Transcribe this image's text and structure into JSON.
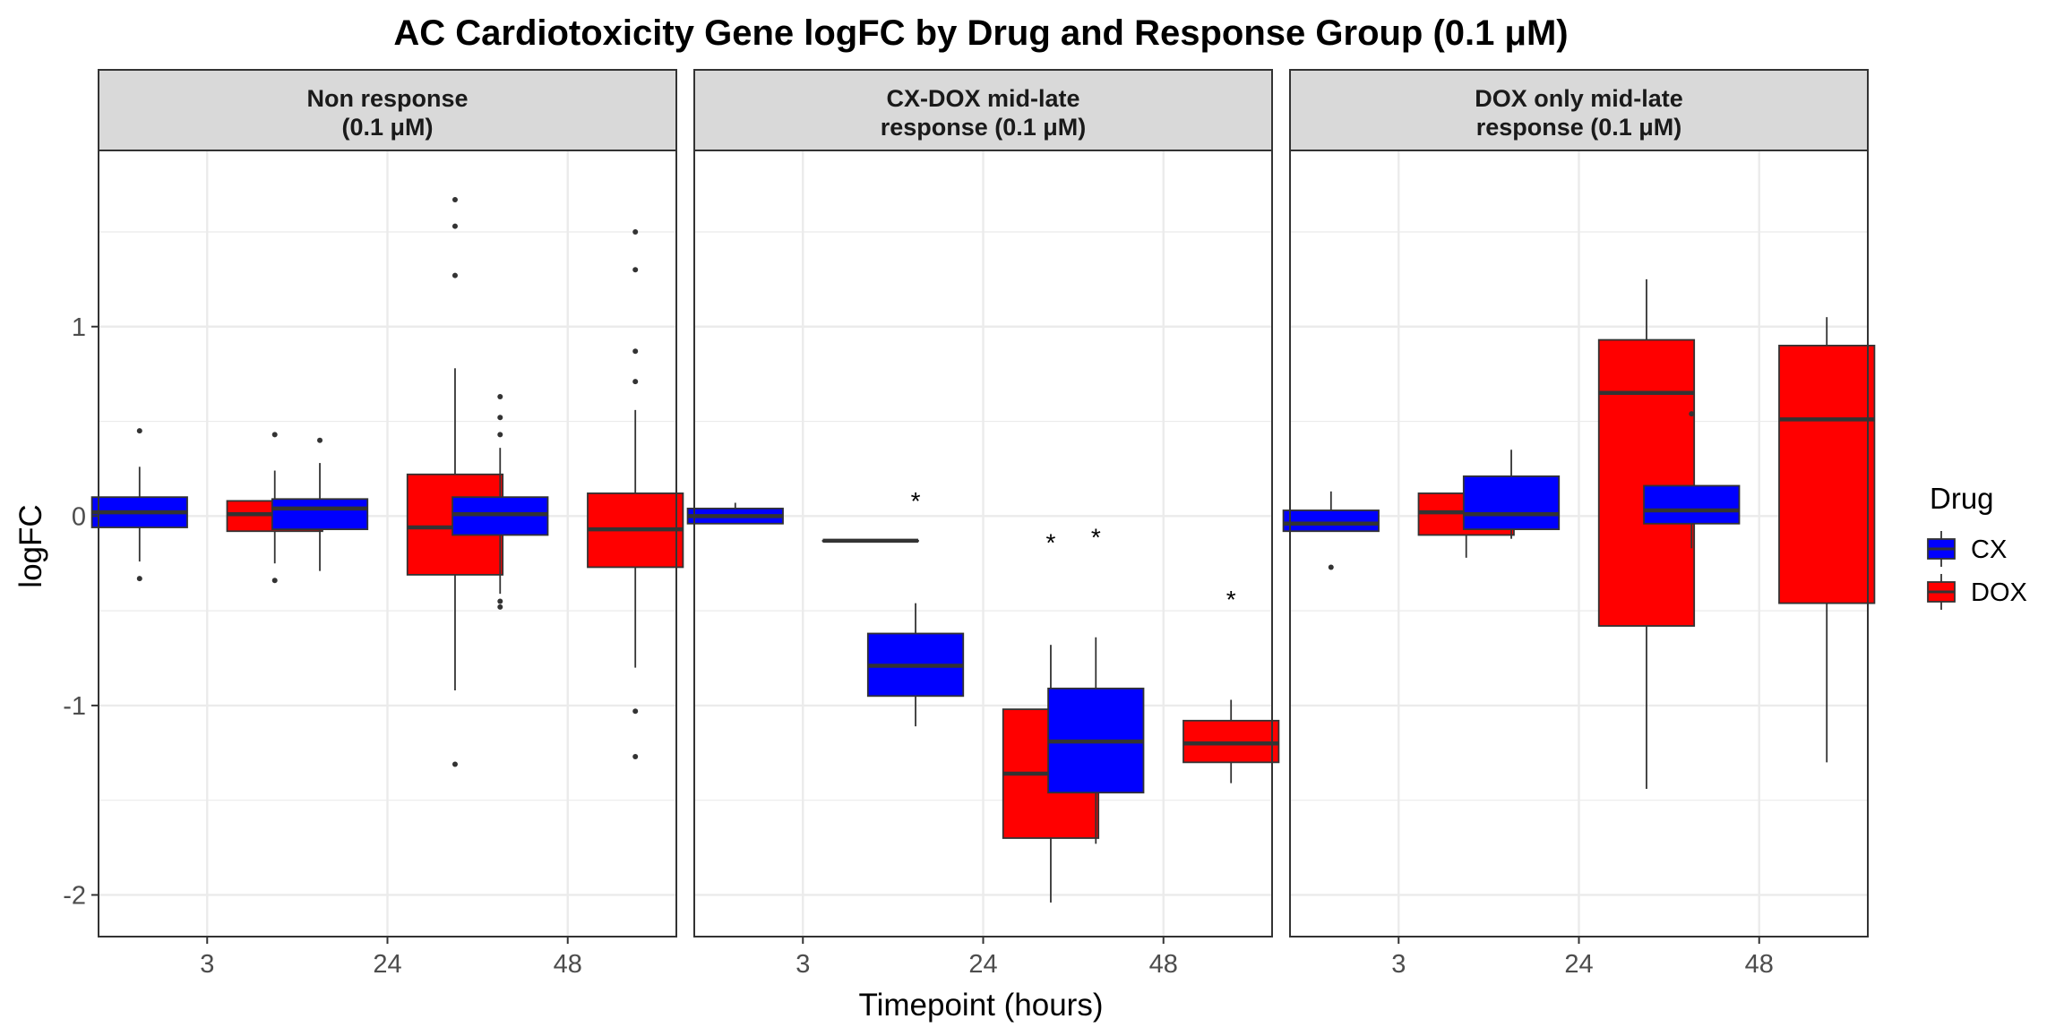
{
  "chart_data": {
    "type": "boxplot",
    "title": "AC Cardiotoxicity Gene logFC by Drug and Response Group (0.1 μM)",
    "xlabel": "Timepoint (hours)",
    "ylabel": "logFC",
    "ylim": [
      -2.22,
      1.93
    ],
    "y_ticks": [
      1,
      0,
      -1,
      -2
    ],
    "y_tick_labels": [
      "1",
      "0",
      "-1",
      "-2"
    ],
    "x_categories": [
      "3",
      "24",
      "48"
    ],
    "legend": {
      "title": "Drug",
      "position": "right",
      "entries": [
        {
          "label": "CX",
          "color": "#0000FF"
        },
        {
          "label": "DOX",
          "color": "#FF0000"
        }
      ]
    },
    "colors": {
      "CX": "#0000FF",
      "DOX": "#FF0000",
      "strip_bg": "#D9D9D9",
      "grid": "#EBEBEB"
    },
    "grid": true,
    "panels": [
      {
        "line1": "Non response",
        "line2": "(0.1 μM)",
        "boxes": [
          {
            "timepoint": "3",
            "drug": "CX",
            "min": -0.24,
            "q1": -0.06,
            "median": 0.02,
            "q3": 0.1,
            "max": 0.26,
            "outliers": [
              0.45,
              -0.33
            ]
          },
          {
            "timepoint": "3",
            "drug": "DOX",
            "min": -0.25,
            "q1": -0.08,
            "median": 0.01,
            "q3": 0.08,
            "max": 0.24,
            "outliers": [
              0.43,
              -0.34
            ]
          },
          {
            "timepoint": "24",
            "drug": "CX",
            "min": -0.29,
            "q1": -0.07,
            "median": 0.04,
            "q3": 0.09,
            "max": 0.28,
            "outliers": [
              0.4
            ]
          },
          {
            "timepoint": "24",
            "drug": "DOX",
            "min": -0.92,
            "q1": -0.31,
            "median": -0.06,
            "q3": 0.22,
            "max": 0.78,
            "outliers": [
              1.67,
              1.53,
              1.27,
              -1.31
            ]
          },
          {
            "timepoint": "48",
            "drug": "CX",
            "min": -0.41,
            "q1": -0.1,
            "median": 0.01,
            "q3": 0.1,
            "max": 0.36,
            "outliers": [
              0.63,
              0.52,
              0.43,
              -0.45,
              -0.48
            ]
          },
          {
            "timepoint": "48",
            "drug": "DOX",
            "min": -0.8,
            "q1": -0.27,
            "median": -0.07,
            "q3": 0.12,
            "max": 0.56,
            "outliers": [
              1.5,
              1.3,
              0.87,
              0.71,
              -1.03,
              -1.27
            ]
          }
        ],
        "annotations": []
      },
      {
        "line1": "CX-DOX mid-late",
        "line2": "response (0.1 μM)",
        "boxes": [
          {
            "timepoint": "3",
            "drug": "CX",
            "min": -0.04,
            "q1": -0.04,
            "median": 0.0,
            "q3": 0.04,
            "max": 0.07,
            "outliers": []
          },
          {
            "timepoint": "3",
            "drug": "DOX",
            "min": -0.13,
            "q1": -0.13,
            "median": -0.13,
            "q3": -0.13,
            "max": -0.13,
            "outliers": []
          },
          {
            "timepoint": "24",
            "drug": "CX",
            "min": -1.11,
            "q1": -0.95,
            "median": -0.79,
            "q3": -0.62,
            "max": -0.46,
            "outliers": []
          },
          {
            "timepoint": "24",
            "drug": "DOX",
            "min": -2.04,
            "q1": -1.7,
            "median": -1.36,
            "q3": -1.02,
            "max": -0.68,
            "outliers": []
          },
          {
            "timepoint": "48",
            "drug": "CX",
            "min": -1.73,
            "q1": -1.46,
            "median": -1.19,
            "q3": -0.91,
            "max": -0.64,
            "outliers": []
          },
          {
            "timepoint": "48",
            "drug": "DOX",
            "min": -1.41,
            "q1": -1.3,
            "median": -1.2,
            "q3": -1.08,
            "max": -0.97,
            "outliers": []
          }
        ],
        "annotations": [
          {
            "timepoint": "24",
            "drug": "CX",
            "y": 0.1,
            "text": "*"
          },
          {
            "timepoint": "24",
            "drug": "DOX",
            "y": -0.12,
            "text": "*"
          },
          {
            "timepoint": "48",
            "drug": "CX",
            "y": -0.09,
            "text": "*"
          },
          {
            "timepoint": "48",
            "drug": "DOX",
            "y": -0.42,
            "text": "*"
          }
        ]
      },
      {
        "line1": "DOX only mid-late",
        "line2": "response (0.1 μM)",
        "boxes": [
          {
            "timepoint": "3",
            "drug": "CX",
            "min": -0.08,
            "q1": -0.08,
            "median": -0.04,
            "q3": 0.03,
            "max": 0.13,
            "outliers": [
              -0.27
            ]
          },
          {
            "timepoint": "3",
            "drug": "DOX",
            "min": -0.22,
            "q1": -0.1,
            "median": 0.02,
            "q3": 0.12,
            "max": 0.17,
            "outliers": []
          },
          {
            "timepoint": "24",
            "drug": "CX",
            "min": -0.12,
            "q1": -0.07,
            "median": 0.01,
            "q3": 0.21,
            "max": 0.35,
            "outliers": []
          },
          {
            "timepoint": "24",
            "drug": "DOX",
            "min": -1.44,
            "q1": -0.58,
            "median": 0.65,
            "q3": 0.93,
            "max": 1.25,
            "outliers": []
          },
          {
            "timepoint": "48",
            "drug": "CX",
            "min": -0.17,
            "q1": -0.04,
            "median": 0.03,
            "q3": 0.16,
            "max": 0.16,
            "outliers": [
              0.54
            ]
          },
          {
            "timepoint": "48",
            "drug": "DOX",
            "min": -1.3,
            "q1": -0.46,
            "median": 0.51,
            "q3": 0.9,
            "max": 1.05,
            "outliers": []
          }
        ],
        "annotations": []
      }
    ]
  }
}
